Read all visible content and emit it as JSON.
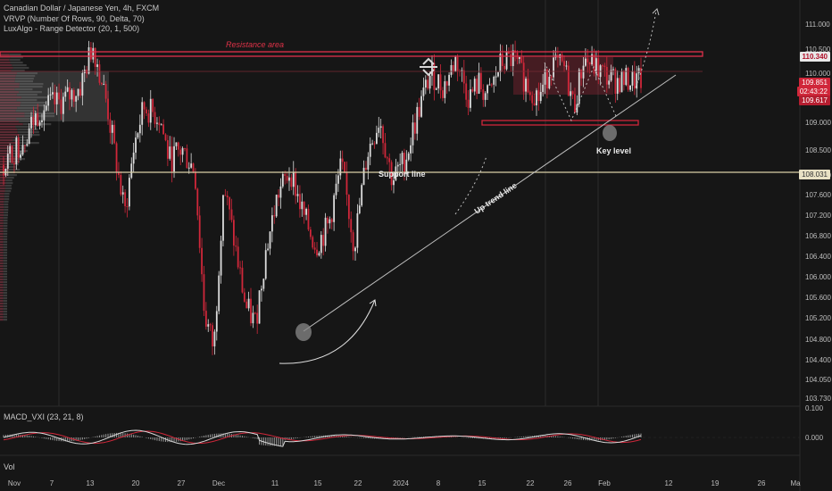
{
  "header": {
    "title": "Canadian Dollar / Japanese Yen, 4h, FXCM",
    "indicator1": "VRVP (Number Of Rows, 90, Delta, 70)",
    "indicator2": "LuxAlgo - Range Detector (20, 1, 500)"
  },
  "macd_label": "MACD_VXI (23, 21, 8)",
  "vol_label": "Vol",
  "price_tags": {
    "resistance": "110.340",
    "current": "109.851",
    "countdown": "02:43:22",
    "range_low": "109.617",
    "support": "108.031"
  },
  "colors": {
    "background": "#161616",
    "up": "#dcdcdc",
    "down": "#d0273a",
    "resistance": "#e0314b",
    "support_line": "#d9cfa6",
    "trend_line": "#bfbfbf"
  },
  "chart_data": {
    "type": "candlestick",
    "symbol": "CADJPY",
    "timeframe": "4h",
    "y_ticks": [
      "111.000",
      "110.500",
      "110.000",
      "109.000",
      "108.500",
      "108.000",
      "107.600",
      "107.200",
      "106.800",
      "106.400",
      "106.000",
      "105.600",
      "105.200",
      "104.800",
      "104.400",
      "104.050",
      "103.730"
    ],
    "x_ticks": [
      "Nov",
      "7",
      "13",
      "20",
      "27",
      "Dec",
      "11",
      "15",
      "22",
      "2024",
      "8",
      "15",
      "22",
      "26",
      "Feb",
      "12",
      "19",
      "26",
      "Ma"
    ],
    "ylim": [
      103.73,
      111.0
    ],
    "annotations": {
      "resistance": "Resistance area",
      "support": "Support line",
      "trend": "Up trend line",
      "key": "Key level"
    },
    "path": [
      [
        0,
        108.2
      ],
      [
        0.03,
        108.7
      ],
      [
        0.06,
        109.3
      ],
      [
        0.09,
        109.4
      ],
      [
        0.12,
        109.7
      ],
      [
        0.14,
        110.6
      ],
      [
        0.16,
        109.5
      ],
      [
        0.18,
        108.0
      ],
      [
        0.19,
        107.2
      ],
      [
        0.205,
        108.6
      ],
      [
        0.22,
        109.3
      ],
      [
        0.245,
        109.1
      ],
      [
        0.26,
        108.3
      ],
      [
        0.28,
        108.5
      ],
      [
        0.3,
        108.1
      ],
      [
        0.315,
        105.3
      ],
      [
        0.33,
        104.6
      ],
      [
        0.345,
        107.8
      ],
      [
        0.36,
        106.8
      ],
      [
        0.38,
        105.4
      ],
      [
        0.395,
        105.1
      ],
      [
        0.41,
        106.4
      ],
      [
        0.43,
        107.6
      ],
      [
        0.45,
        108.1
      ],
      [
        0.47,
        107.2
      ],
      [
        0.49,
        106.6
      ],
      [
        0.51,
        107.0
      ],
      [
        0.53,
        108.2
      ],
      [
        0.55,
        106.6
      ],
      [
        0.57,
        108.4
      ],
      [
        0.59,
        109.1
      ],
      [
        0.61,
        107.9
      ],
      [
        0.63,
        108.3
      ],
      [
        0.65,
        109.2
      ],
      [
        0.67,
        110.0
      ],
      [
        0.69,
        109.7
      ],
      [
        0.71,
        110.3
      ],
      [
        0.73,
        109.5
      ],
      [
        0.745,
        109.8
      ],
      [
        0.76,
        109.5
      ],
      [
        0.78,
        110.2
      ],
      [
        0.8,
        110.3
      ],
      [
        0.82,
        109.8
      ],
      [
        0.84,
        109.5
      ],
      [
        0.86,
        110.2
      ],
      [
        0.88,
        110.1
      ],
      [
        0.895,
        109.3
      ],
      [
        0.91,
        110.3
      ],
      [
        0.93,
        110.1
      ],
      [
        0.95,
        109.9
      ],
      [
        0.96,
        109.85
      ]
    ]
  }
}
